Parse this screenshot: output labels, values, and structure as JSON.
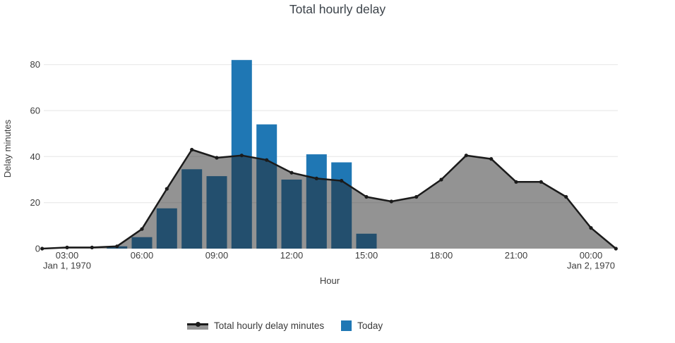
{
  "title": "Total hourly delay",
  "axes": {
    "y_title": "Delay minutes",
    "x_title": "Hour",
    "y_ticks": [
      0,
      20,
      40,
      60,
      80
    ],
    "x_ticks": [
      {
        "label": "03:00",
        "hour": 3
      },
      {
        "label": "06:00",
        "hour": 6
      },
      {
        "label": "09:00",
        "hour": 9
      },
      {
        "label": "12:00",
        "hour": 12
      },
      {
        "label": "15:00",
        "hour": 15
      },
      {
        "label": "18:00",
        "hour": 18
      },
      {
        "label": "21:00",
        "hour": 21
      },
      {
        "label": "00:00",
        "hour": 24
      }
    ],
    "x_date_labels": [
      {
        "label": "Jan 1, 1970",
        "hour": 3
      },
      {
        "label": "Jan 2, 1970",
        "hour": 24
      }
    ]
  },
  "legend": {
    "items": [
      {
        "label": "Total hourly delay minutes",
        "swatch": "area-line"
      },
      {
        "label": "Today",
        "swatch": "square"
      }
    ]
  },
  "colors": {
    "bar_blue": "#1f77b4",
    "bar_under_area_rendered": "#1e4f6e",
    "area_overlay": "rgba(40,40,40,0.5)",
    "area_rendered_gray": "#949494",
    "line": "#1b1b1b",
    "gridline": "#e6e6e6",
    "tick_text": "#3d3d3d",
    "title_text": "#3c434a"
  },
  "chart_data": {
    "type": "combo",
    "title": "Total hourly delay",
    "xlabel": "Hour",
    "ylabel": "Delay minutes",
    "ylim": [
      0,
      88
    ],
    "grid": "horizontal",
    "legend_position": "bottom",
    "x_axis": {
      "ticks": [
        "03:00",
        "06:00",
        "09:00",
        "12:00",
        "15:00",
        "18:00",
        "21:00",
        "00:00"
      ],
      "start": "02:00 Jan 1, 1970",
      "end": "01:00 Jan 2, 1970"
    },
    "series": [
      {
        "name": "Total hourly delay minutes",
        "type": "area",
        "hour_labels": [
          "02:00",
          "03:00",
          "04:00",
          "05:00",
          "06:00",
          "07:00",
          "08:00",
          "09:00",
          "10:00",
          "11:00",
          "12:00",
          "13:00",
          "14:00",
          "15:00",
          "16:00",
          "17:00",
          "18:00",
          "19:00",
          "20:00",
          "21:00",
          "22:00",
          "23:00",
          "00:00",
          "01:00"
        ],
        "hours": [
          2,
          3,
          4,
          5,
          6,
          7,
          8,
          9,
          10,
          11,
          12,
          13,
          14,
          15,
          16,
          17,
          18,
          19,
          20,
          21,
          22,
          23,
          24,
          25
        ],
        "values": [
          0,
          0.5,
          0.5,
          1,
          8.5,
          26,
          43,
          39.5,
          40.5,
          38.5,
          33,
          30.5,
          29.5,
          22.5,
          20.5,
          22.5,
          30,
          40.5,
          39,
          29,
          29,
          22.5,
          9,
          0
        ]
      },
      {
        "name": "Today",
        "type": "bar",
        "hour_labels": [
          "05:00",
          "06:00",
          "07:00",
          "08:00",
          "09:00",
          "10:00",
          "11:00",
          "12:00",
          "13:00",
          "14:00",
          "15:00"
        ],
        "hours": [
          5,
          6,
          7,
          8,
          9,
          10,
          11,
          12,
          13,
          14,
          15
        ],
        "values": [
          1,
          5,
          17.5,
          34.5,
          31.5,
          82,
          54,
          30,
          41,
          37.5,
          6.5
        ]
      }
    ]
  }
}
